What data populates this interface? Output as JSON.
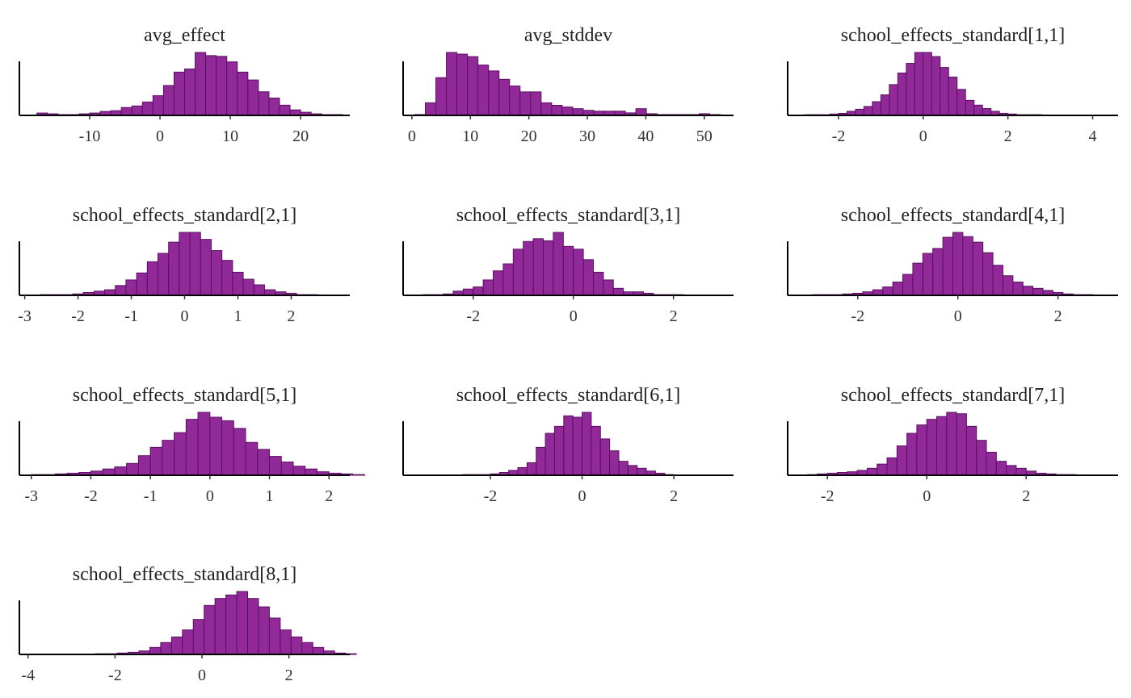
{
  "colors": {
    "bar_fill": "#912a98",
    "bar_stroke": "#5a0f62",
    "axis": "#000000"
  },
  "chart_data": [
    {
      "type": "bar",
      "title": "avg_effect",
      "bin_start": -17.5,
      "bin_width": 1.5,
      "counts": [
        3,
        2,
        1,
        1,
        2,
        3,
        5,
        6,
        10,
        12,
        17,
        25,
        38,
        55,
        59,
        80,
        76,
        75,
        68,
        55,
        45,
        30,
        22,
        13,
        7,
        4,
        2,
        1,
        1,
        0
      ],
      "xlim": [
        -20,
        27
      ],
      "ticks": [
        -10,
        0,
        10,
        20
      ],
      "tick_labels": [
        "-10",
        "0",
        "10",
        "20"
      ]
    },
    {
      "type": "bar",
      "title": "avg_stddev",
      "bin_start": 0.5,
      "bin_width": 1.8,
      "counts": [
        1,
        15,
        45,
        75,
        73,
        70,
        60,
        53,
        43,
        35,
        28,
        28,
        15,
        12,
        10,
        8,
        6,
        5,
        5,
        5,
        3,
        8,
        2,
        1,
        1,
        1,
        1,
        2,
        1
      ],
      "xlim": [
        -1.5,
        55
      ],
      "ticks": [
        0,
        10,
        20,
        30,
        40,
        50
      ],
      "tick_labels": [
        "0",
        "10",
        "20",
        "30",
        "40",
        "50"
      ]
    },
    {
      "type": "bar",
      "title": "school_effects_standard[1,1]",
      "bin_start": -2.8,
      "bin_width": 0.2,
      "counts": [
        1,
        1,
        1,
        2,
        3,
        6,
        9,
        13,
        20,
        30,
        45,
        62,
        76,
        92,
        92,
        86,
        70,
        56,
        38,
        22,
        15,
        10,
        6,
        3,
        2,
        1,
        1,
        1,
        0,
        0,
        0,
        0,
        0,
        0
      ],
      "xlim": [
        -3.2,
        4.6
      ],
      "ticks": [
        -2,
        0,
        2,
        4
      ],
      "tick_labels": [
        "-2",
        "0",
        "2",
        "4"
      ]
    },
    {
      "type": "bar",
      "title": "school_effects_standard[2,1]",
      "bin_start": -2.9,
      "bin_width": 0.2,
      "counts": [
        0,
        1,
        1,
        1,
        2,
        4,
        6,
        8,
        14,
        22,
        32,
        48,
        60,
        76,
        90,
        90,
        80,
        64,
        50,
        33,
        23,
        15,
        8,
        5,
        3,
        1,
        1,
        0
      ],
      "xlim": [
        -3.1,
        3.1
      ],
      "ticks": [
        -3,
        -2,
        -1,
        0,
        1,
        2
      ],
      "tick_labels": [
        "-3",
        "-2",
        "-1",
        "0",
        "1",
        "2"
      ]
    },
    {
      "type": "bar",
      "title": "school_effects_standard[3,1]",
      "bin_start": -3.2,
      "bin_width": 0.2,
      "counts": [
        0,
        1,
        1,
        2,
        6,
        9,
        12,
        22,
        35,
        45,
        66,
        77,
        81,
        78,
        90,
        70,
        66,
        51,
        33,
        22,
        10,
        5,
        5,
        3,
        1,
        1,
        1,
        0,
        0,
        0,
        0,
        0,
        0,
        0
      ],
      "xlim": [
        -3.4,
        3.2
      ],
      "ticks": [
        -2,
        0,
        2
      ],
      "tick_labels": [
        "-2",
        "0",
        "2"
      ]
    },
    {
      "type": "bar",
      "title": "school_effects_standard[4,1]",
      "bin_start": -2.9,
      "bin_width": 0.2,
      "counts": [
        1,
        1,
        1,
        2,
        3,
        5,
        8,
        12,
        19,
        30,
        46,
        60,
        67,
        83,
        90,
        84,
        76,
        61,
        43,
        28,
        19,
        13,
        10,
        7,
        4,
        2,
        1,
        1,
        0,
        0,
        0
      ],
      "xlim": [
        -3.4,
        3.2
      ],
      "ticks": [
        -2,
        0,
        2
      ],
      "tick_labels": [
        "-2",
        "0",
        "2"
      ]
    },
    {
      "type": "bar",
      "title": "school_effects_standard[5,1]",
      "bin_start": -3.0,
      "bin_width": 0.2,
      "counts": [
        1,
        1,
        2,
        3,
        4,
        6,
        9,
        12,
        17,
        28,
        40,
        50,
        61,
        80,
        90,
        83,
        78,
        67,
        47,
        37,
        27,
        19,
        13,
        9,
        5,
        3,
        2,
        1,
        0,
        0
      ],
      "xlim": [
        -3.2,
        2.35
      ],
      "ticks": [
        -3,
        -2,
        -1,
        0,
        1,
        2
      ],
      "tick_labels": [
        "-3",
        "-2",
        "-1",
        "0",
        "1",
        "2"
      ]
    },
    {
      "type": "bar",
      "title": "school_effects_standard[6,1]",
      "bin_start": -3.4,
      "bin_width": 0.2,
      "counts": [
        0,
        0,
        0,
        0,
        1,
        1,
        1,
        2,
        4,
        7,
        11,
        18,
        40,
        60,
        70,
        85,
        83,
        90,
        70,
        52,
        35,
        20,
        14,
        10,
        6,
        3,
        1,
        0,
        0,
        0,
        0,
        0,
        0,
        0
      ],
      "xlim": [
        -3.9,
        3.3
      ],
      "ticks": [
        -2,
        0,
        2
      ],
      "tick_labels": [
        "-2",
        "0",
        "2"
      ]
    },
    {
      "type": "bar",
      "title": "school_effects_standard[7,1]",
      "bin_start": -2.4,
      "bin_width": 0.2,
      "counts": [
        1,
        2,
        3,
        4,
        5,
        7,
        10,
        16,
        25,
        42,
        60,
        72,
        80,
        84,
        90,
        88,
        70,
        50,
        33,
        20,
        14,
        10,
        6,
        3,
        2,
        1,
        1,
        0,
        0,
        0,
        0,
        0,
        0
      ],
      "xlim": [
        -2.8,
        3.85
      ],
      "ticks": [
        -2,
        0,
        2
      ],
      "tick_labels": [
        "-2",
        "0",
        "2"
      ]
    },
    {
      "type": "bar",
      "title": "school_effects_standard[8,1]",
      "bin_start": -3.2,
      "bin_width": 0.25,
      "counts": [
        0,
        0,
        0,
        1,
        1,
        2,
        3,
        5,
        10,
        17,
        25,
        35,
        50,
        70,
        80,
        85,
        90,
        80,
        68,
        52,
        35,
        25,
        17,
        10,
        5,
        2,
        1,
        0
      ],
      "xlim": [
        -4.2,
        3.4
      ],
      "ticks": [
        -4,
        -2,
        0,
        2
      ],
      "tick_labels": [
        "-4",
        "-2",
        "0",
        "2"
      ]
    }
  ]
}
